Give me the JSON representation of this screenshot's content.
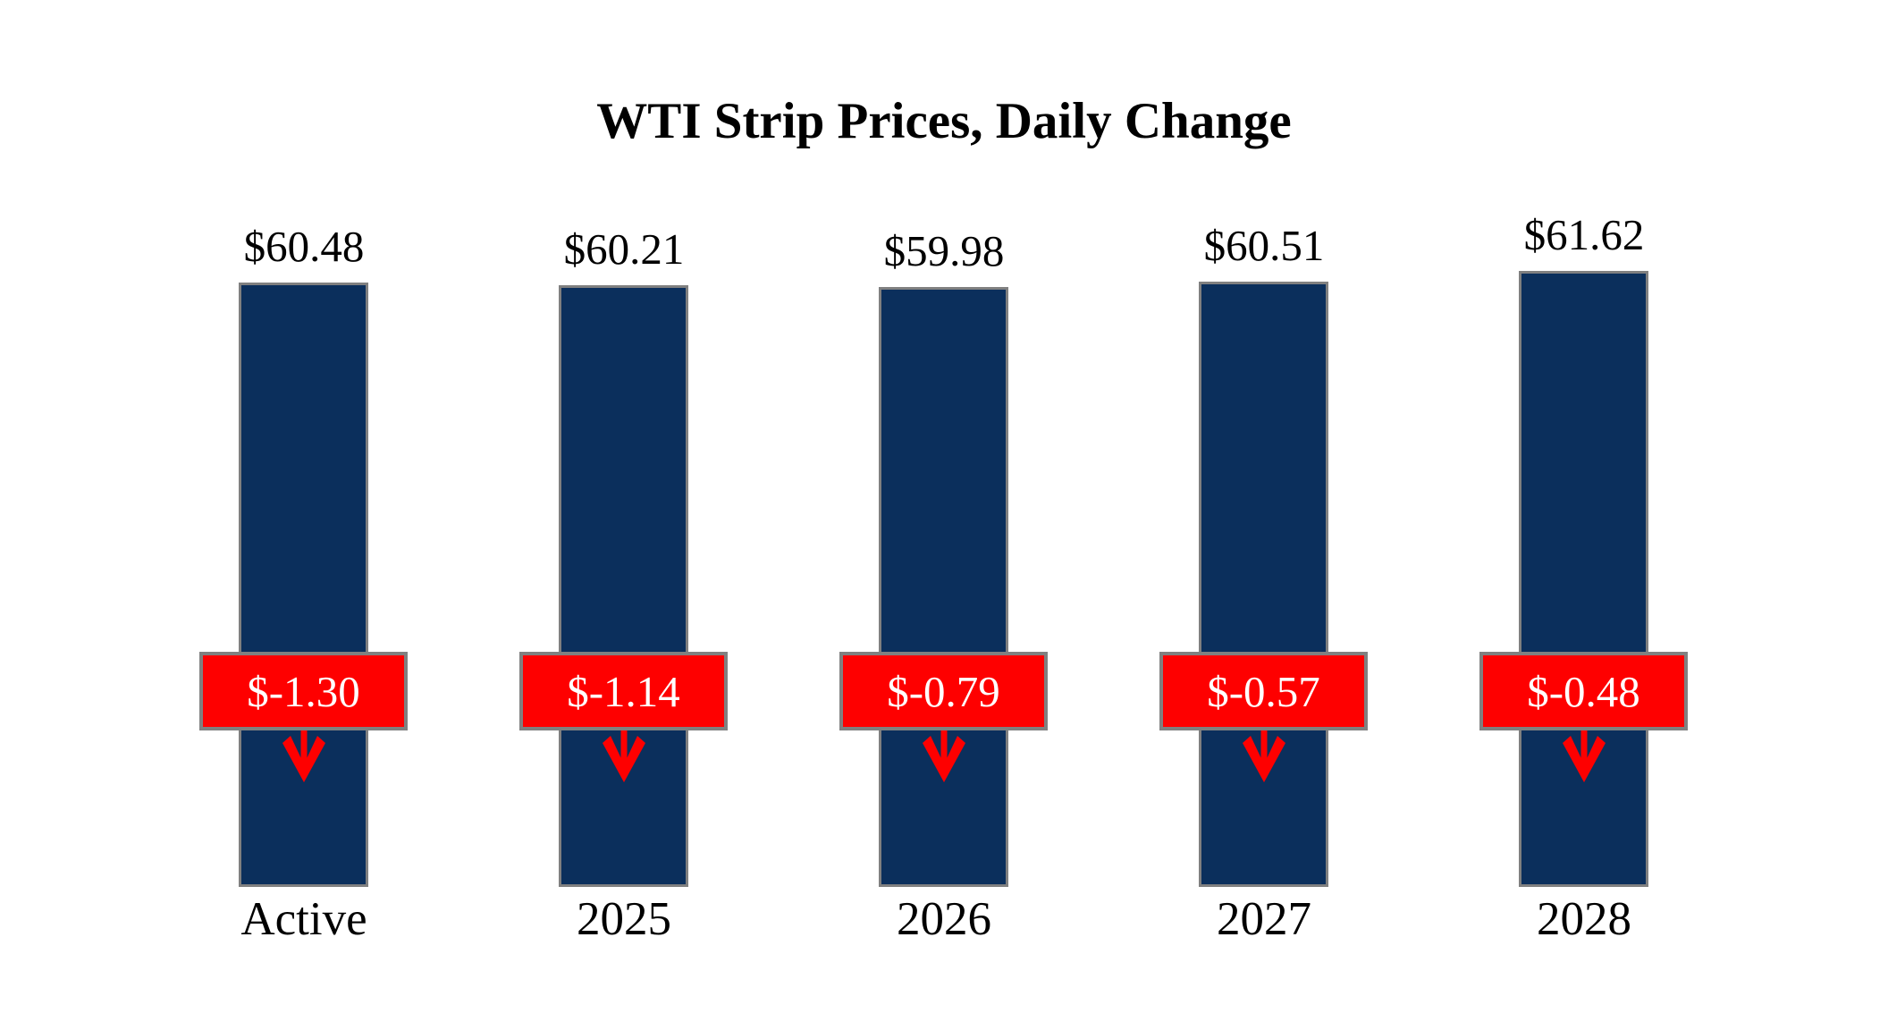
{
  "chart_data": {
    "type": "bar",
    "title": "WTI Strip Prices, Daily Change",
    "categories": [
      "Active",
      "2025",
      "2026",
      "2027",
      "2028"
    ],
    "values": [
      60.48,
      60.21,
      59.98,
      60.51,
      61.62
    ],
    "value_labels": [
      "$60.48",
      "$60.21",
      "$59.98",
      "$60.51",
      "$61.62"
    ],
    "daily_changes": [
      -1.3,
      -1.14,
      -0.79,
      -0.57,
      -0.48
    ],
    "change_labels": [
      "$-1.30",
      "$-1.14",
      "$-0.79",
      "$-0.57",
      "$-0.48"
    ],
    "change_direction": "down",
    "xlabel": "",
    "ylabel": "",
    "ylim": [
      0,
      61.62
    ],
    "grid": false,
    "legend": false,
    "colors": {
      "bar_fill": "#0b2f5c",
      "bar_border": "#808080",
      "change_box_fill": "#fe0000",
      "change_box_border": "#808080",
      "change_text": "#ffffff",
      "arrow": "#fe0000",
      "label_text": "#000000",
      "background": "#ffffff"
    }
  }
}
